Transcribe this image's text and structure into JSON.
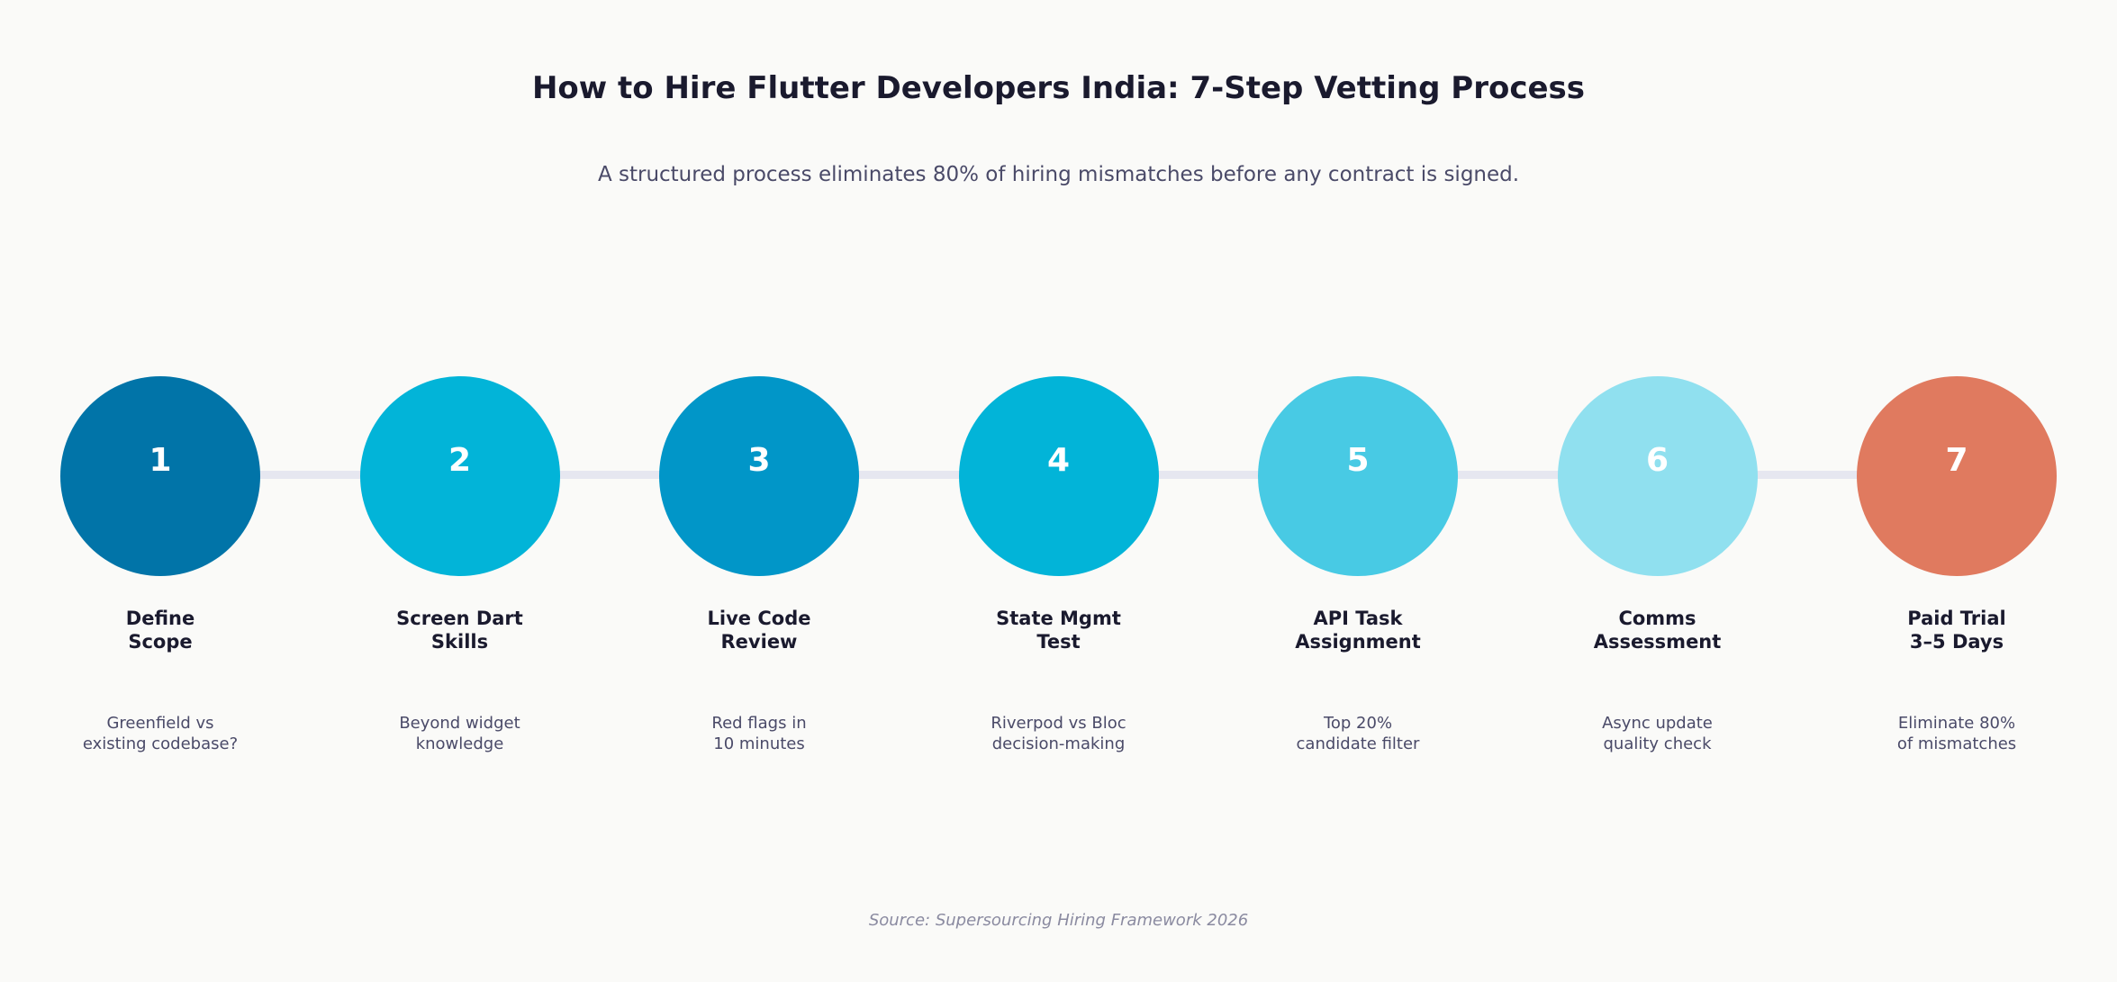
{
  "title": "How to Hire Flutter Developers India: 7-Step Vetting Process",
  "subtitle": "A structured process eliminates 80% of hiring mismatches before any contract is signed.",
  "steps": [
    {
      "number": "1",
      "label_lines": [
        "Define",
        "Scope"
      ],
      "desc_lines": [
        "Greenfield vs",
        "existing codebase?"
      ],
      "color": "#0174a8"
    },
    {
      "number": "2",
      "label_lines": [
        "Screen Dart",
        "Skills"
      ],
      "desc_lines": [
        "Beyond widget",
        "knowledge"
      ],
      "color": "#02b4d8"
    },
    {
      "number": "3",
      "label_lines": [
        "Live Code",
        "Review"
      ],
      "desc_lines": [
        "Red flags in",
        "10 minutes"
      ],
      "color": "#0196c8"
    },
    {
      "number": "4",
      "label_lines": [
        "State Mgmt",
        "Test"
      ],
      "desc_lines": [
        "Riverpod vs Bloc",
        "decision-making"
      ],
      "color": "#02b4d8"
    },
    {
      "number": "5",
      "label_lines": [
        "API Task",
        "Assignment"
      ],
      "desc_lines": [
        "Top 20%",
        "candidate filter"
      ],
      "color": "#48cae4"
    },
    {
      "number": "6",
      "label_lines": [
        "Comms",
        "Assessment"
      ],
      "desc_lines": [
        "Async update",
        "quality check"
      ],
      "color": "#90e0ef"
    },
    {
      "number": "7",
      "label_lines": [
        "Paid Trial",
        "3–5 Days"
      ],
      "desc_lines": [
        "Eliminate 80%",
        "of mismatches"
      ],
      "color": "#e07a5f"
    }
  ],
  "source": "Source: Supersourcing Hiring Framework 2026"
}
